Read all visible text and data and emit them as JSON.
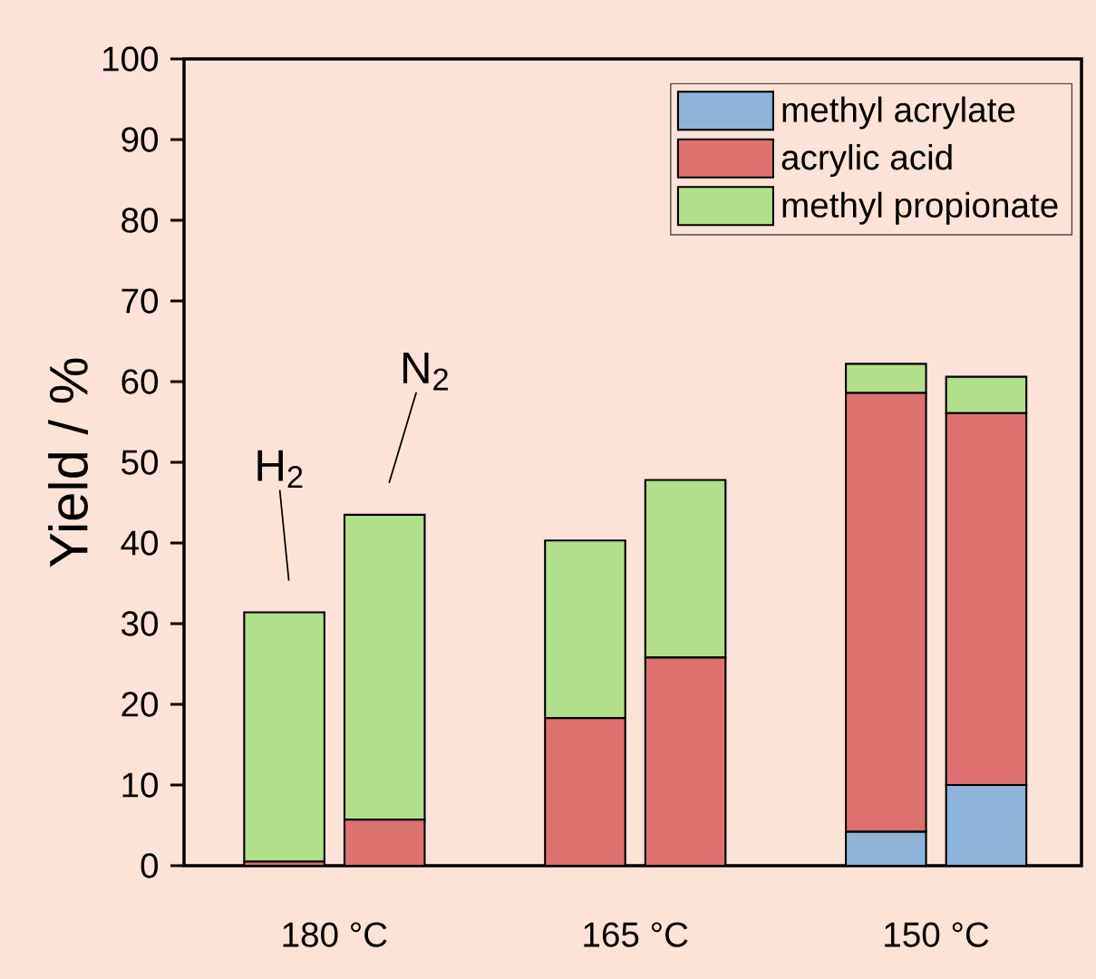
{
  "chart_data": {
    "type": "bar",
    "stacked": true,
    "ylabel": "Yield / %",
    "categories": [
      "180 °C",
      null,
      null,
      "165 °C",
      null,
      null,
      "150 °C",
      null
    ],
    "ylim": [
      0,
      100
    ],
    "yticks": [
      0,
      10,
      20,
      30,
      40,
      50,
      60,
      70,
      80,
      90,
      100
    ],
    "series": [
      {
        "name": "methyl acrylate",
        "color": "#8fb4d9",
        "values": [
          0,
          0,
          null,
          0,
          0,
          null,
          4.2,
          10.0
        ]
      },
      {
        "name": "acrylic acid",
        "color": "#dd7170",
        "values": [
          0.5,
          5.7,
          null,
          18.3,
          25.8,
          null,
          54.4,
          46.1
        ]
      },
      {
        "name": "methyl propionate",
        "color": "#b2df8a",
        "values": [
          30.9,
          37.8,
          null,
          22.0,
          22.0,
          null,
          3.6,
          4.5
        ]
      }
    ],
    "annotations": [
      "H$_{2}$",
      "N$_{2}$"
    ],
    "legend": "top right",
    "grid": false
  }
}
